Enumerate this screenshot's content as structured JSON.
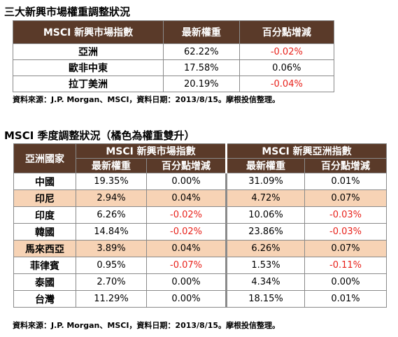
{
  "section1": {
    "title": "三大新興市場權重調整狀況",
    "headers": [
      "MSCI 新興市場指數",
      "最新權重",
      "百分點增減"
    ],
    "rows": [
      {
        "name": "亞洲",
        "weight": "62.22%",
        "change": "-0.02%",
        "neg": true
      },
      {
        "name": "歐非中東",
        "weight": "17.58%",
        "change": "0.06%",
        "neg": false
      },
      {
        "name": "拉丁美洲",
        "weight": "20.19%",
        "change": "-0.04%",
        "neg": true
      }
    ],
    "source": "資料來源：J.P. Morgan、MSCI，資料日期：2013/8/15。摩根投信整理。"
  },
  "section2": {
    "title": "MSCI 季度調整狀況（橘色為權重雙升）",
    "country_header": "亞洲國家",
    "group1": "MSCI 新興市場指數",
    "group2": "MSCI 新興亞洲指數",
    "sub1": "最新權重",
    "sub2": "百分點增減",
    "sub3": "最新權重",
    "sub4": "百分點增減",
    "rows": [
      {
        "name": "中國",
        "em_w": "19.35%",
        "em_c": "0.00%",
        "em_neg": false,
        "as_w": "31.09%",
        "as_c": "0.01%",
        "as_neg": false,
        "hl": false
      },
      {
        "name": "印尼",
        "em_w": "2.94%",
        "em_c": "0.04%",
        "em_neg": false,
        "as_w": "4.72%",
        "as_c": "0.07%",
        "as_neg": false,
        "hl": true
      },
      {
        "name": "印度",
        "em_w": "6.26%",
        "em_c": "-0.02%",
        "em_neg": true,
        "as_w": "10.06%",
        "as_c": "-0.03%",
        "as_neg": true,
        "hl": false
      },
      {
        "name": "韓國",
        "em_w": "14.84%",
        "em_c": "-0.02%",
        "em_neg": true,
        "as_w": "23.86%",
        "as_c": "-0.03%",
        "as_neg": true,
        "hl": false
      },
      {
        "name": "馬來西亞",
        "em_w": "3.89%",
        "em_c": "0.04%",
        "em_neg": false,
        "as_w": "6.26%",
        "as_c": "0.07%",
        "as_neg": false,
        "hl": true
      },
      {
        "name": "菲律賓",
        "em_w": "0.95%",
        "em_c": "-0.07%",
        "em_neg": true,
        "as_w": "1.53%",
        "as_c": "-0.11%",
        "as_neg": true,
        "hl": false
      },
      {
        "name": "泰國",
        "em_w": "2.70%",
        "em_c": "0.00%",
        "em_neg": false,
        "as_w": "4.34%",
        "as_c": "0.00%",
        "as_neg": false,
        "hl": false
      },
      {
        "name": "台灣",
        "em_w": "11.29%",
        "em_c": "0.00%",
        "em_neg": false,
        "as_w": "18.15%",
        "as_c": "0.01%",
        "as_neg": false,
        "hl": false
      }
    ],
    "source": "資料來源：J.P. Morgan、MSCI，資料日期：2013/8/15。摩根投信整理。"
  },
  "colors": {
    "header_bg": "#5a3a29",
    "highlight_row": "#f7d3b5",
    "negative_text": "#e8211a"
  }
}
